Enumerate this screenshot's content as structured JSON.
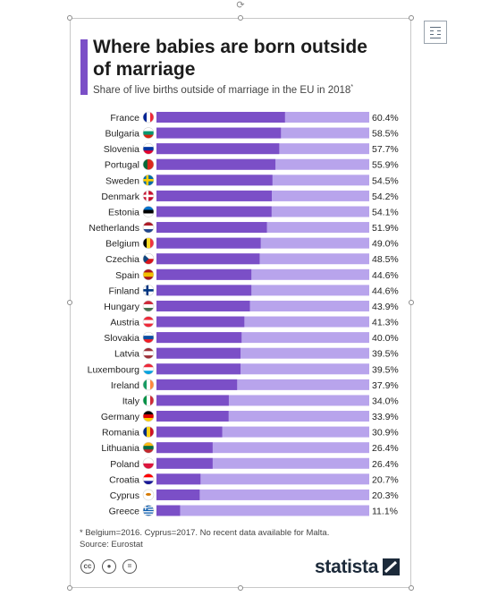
{
  "title": "Where babies are born outside of marriage",
  "subtitle": "Share of live births outside of marriage in the EU in 2018",
  "subtitle_mark": "*",
  "footnote": "* Belgium=2016. Cyprus=2017. No recent data available for Malta.",
  "source": "Source: Eurostat",
  "brand": "statista",
  "icons": {
    "cc": "cc",
    "person": "person-icon",
    "equal": "equal-icon",
    "rotate": "rotate-handle-icon",
    "layout": "layout-options-icon"
  },
  "colors": {
    "bar": "#7b4fc7",
    "track": "#b8a4ec",
    "accent": "#7b4fc7",
    "brand": "#1c2a3a"
  },
  "chart_data": {
    "type": "bar",
    "orientation": "horizontal",
    "title": "Where babies are born outside of marriage",
    "subtitle": "Share of live births outside of marriage in the EU in 2018",
    "categories": [
      "France",
      "Bulgaria",
      "Slovenia",
      "Portugal",
      "Sweden",
      "Denmark",
      "Estonia",
      "Netherlands",
      "Belgium",
      "Czechia",
      "Spain",
      "Finland",
      "Hungary",
      "Austria",
      "Slovakia",
      "Latvia",
      "Luxembourg",
      "Ireland",
      "Italy",
      "Germany",
      "Romania",
      "Lithuania",
      "Poland",
      "Croatia",
      "Cyprus",
      "Greece"
    ],
    "values": [
      60.4,
      58.5,
      57.7,
      55.9,
      54.5,
      54.2,
      54.1,
      51.9,
      49.0,
      48.5,
      44.6,
      44.6,
      43.9,
      41.3,
      40.0,
      39.5,
      39.5,
      37.9,
      34.0,
      33.9,
      30.9,
      26.4,
      26.4,
      20.7,
      20.3,
      11.1
    ],
    "value_labels": [
      "60.4%",
      "58.5%",
      "57.7%",
      "55.9%",
      "54.5%",
      "54.2%",
      "54.1%",
      "51.9%",
      "49.0%",
      "48.5%",
      "44.6%",
      "44.6%",
      "43.9%",
      "41.3%",
      "40.0%",
      "39.5%",
      "39.5%",
      "37.9%",
      "34.0%",
      "33.9%",
      "30.9%",
      "26.4%",
      "26.4%",
      "20.7%",
      "20.3%",
      "11.1%"
    ],
    "xlim": [
      0,
      100
    ],
    "unit": "%",
    "grid": false,
    "legend": "none"
  }
}
